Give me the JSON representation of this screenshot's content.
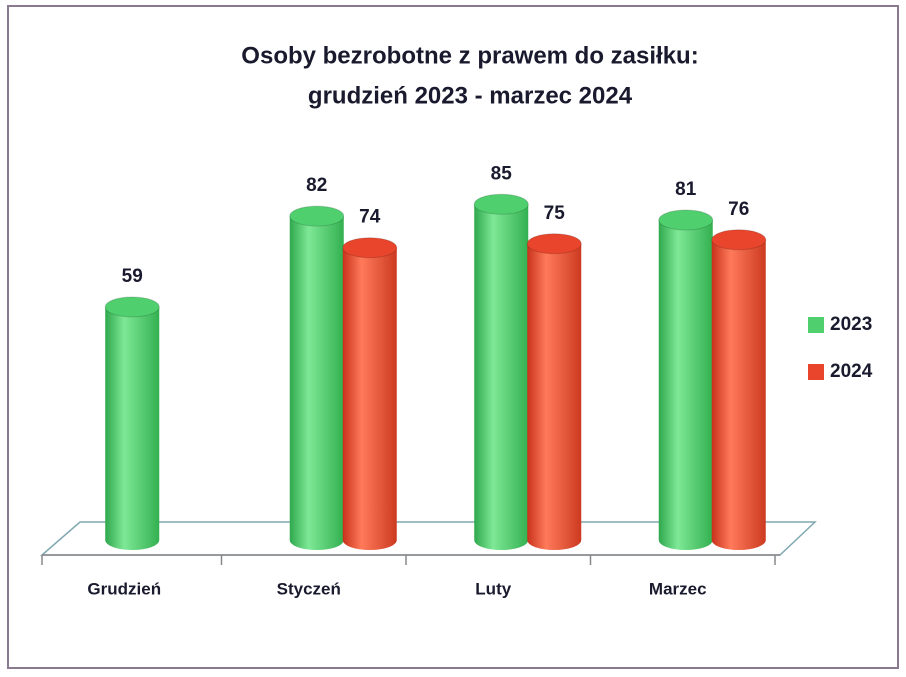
{
  "chart_data": {
    "type": "bar",
    "title": "Osoby bezrobotne z prawem do zasiłku:",
    "subtitle": "grudzień 2023 - marzec 2024",
    "categories": [
      "Grudzień",
      "Styczeń",
      "Luty",
      "Marzec"
    ],
    "series": [
      {
        "name": "2023",
        "color": "#4fcf6e",
        "values": [
          59,
          82,
          85,
          81
        ]
      },
      {
        "name": "2024",
        "color": "#e8452c",
        "values": [
          null,
          74,
          75,
          76
        ]
      }
    ],
    "legend": "right"
  }
}
